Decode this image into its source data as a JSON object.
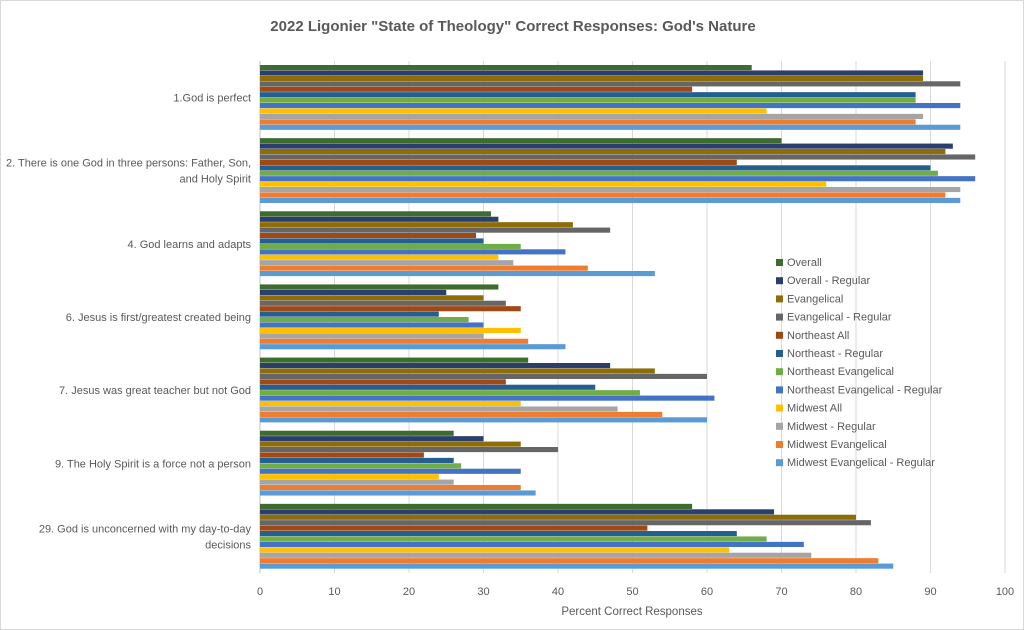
{
  "chart_data": {
    "type": "bar",
    "orientation": "horizontal",
    "title": "2022 Ligonier \"State of Theology\" Correct Responses: God's Nature",
    "xlabel": "Percent Correct Responses",
    "ylabel": "",
    "xlim": [
      0,
      100
    ],
    "xticks": [
      0,
      10,
      20,
      30,
      40,
      50,
      60,
      70,
      80,
      90,
      100
    ],
    "grid": true,
    "legend_position": "right",
    "categories": [
      "1.God is perfect",
      "2. There is one God in three persons: Father, Son, and Holy Spirit",
      "4. God learns and adapts",
      "6. Jesus is first/greatest created being",
      "7. Jesus was great teacher but not God",
      "9. The Holy Spirit is a force not a person",
      "29. God is unconcerned with my day-to-day decisions"
    ],
    "category_lines": [
      [
        "1.God is perfect"
      ],
      [
        "2. There is one God in three persons: Father, Son,",
        "and Holy Spirit"
      ],
      [
        "4. God learns and adapts"
      ],
      [
        "6. Jesus is first/greatest created being"
      ],
      [
        "7. Jesus was great teacher but not God"
      ],
      [
        "9. The Holy Spirit is a force not a person"
      ],
      [
        "29. God is unconcerned with my day-to-day",
        "decisions"
      ]
    ],
    "series": [
      {
        "name": "Overall",
        "color": "#3e6b2e",
        "values": [
          66,
          70,
          31,
          32,
          36,
          26,
          58
        ]
      },
      {
        "name": "Overall - Regular",
        "color": "#2a3f6b",
        "values": [
          89,
          93,
          32,
          25,
          47,
          30,
          69
        ]
      },
      {
        "name": "Evangelical",
        "color": "#8c6d0a",
        "values": [
          89,
          92,
          42,
          30,
          53,
          35,
          80
        ]
      },
      {
        "name": "Evangelical - Regular",
        "color": "#666666",
        "values": [
          94,
          96,
          47,
          33,
          60,
          40,
          82
        ]
      },
      {
        "name": "Northeast All",
        "color": "#9e4a17",
        "values": [
          58,
          64,
          29,
          35,
          33,
          22,
          52
        ]
      },
      {
        "name": "Northeast - Regular",
        "color": "#255e91",
        "values": [
          88,
          90,
          30,
          24,
          45,
          26,
          64
        ]
      },
      {
        "name": "Northeast Evangelical",
        "color": "#70ad47",
        "values": [
          88,
          91,
          35,
          28,
          51,
          27,
          68
        ]
      },
      {
        "name": "Northeast Evangelical - Regular",
        "color": "#4472c4",
        "values": [
          94,
          96,
          41,
          30,
          61,
          35,
          73
        ]
      },
      {
        "name": "Midwest All",
        "color": "#ffc000",
        "values": [
          68,
          76,
          32,
          35,
          35,
          24,
          63
        ]
      },
      {
        "name": "Midwest - Regular",
        "color": "#a5a5a5",
        "values": [
          89,
          94,
          34,
          30,
          48,
          26,
          74
        ]
      },
      {
        "name": "Midwest Evangelical",
        "color": "#ed7d31",
        "values": [
          88,
          92,
          44,
          36,
          54,
          35,
          83
        ]
      },
      {
        "name": "Midwest Evangelical - Regular",
        "color": "#5b9bd5",
        "values": [
          94,
          94,
          53,
          41,
          60,
          37,
          85
        ]
      }
    ]
  }
}
